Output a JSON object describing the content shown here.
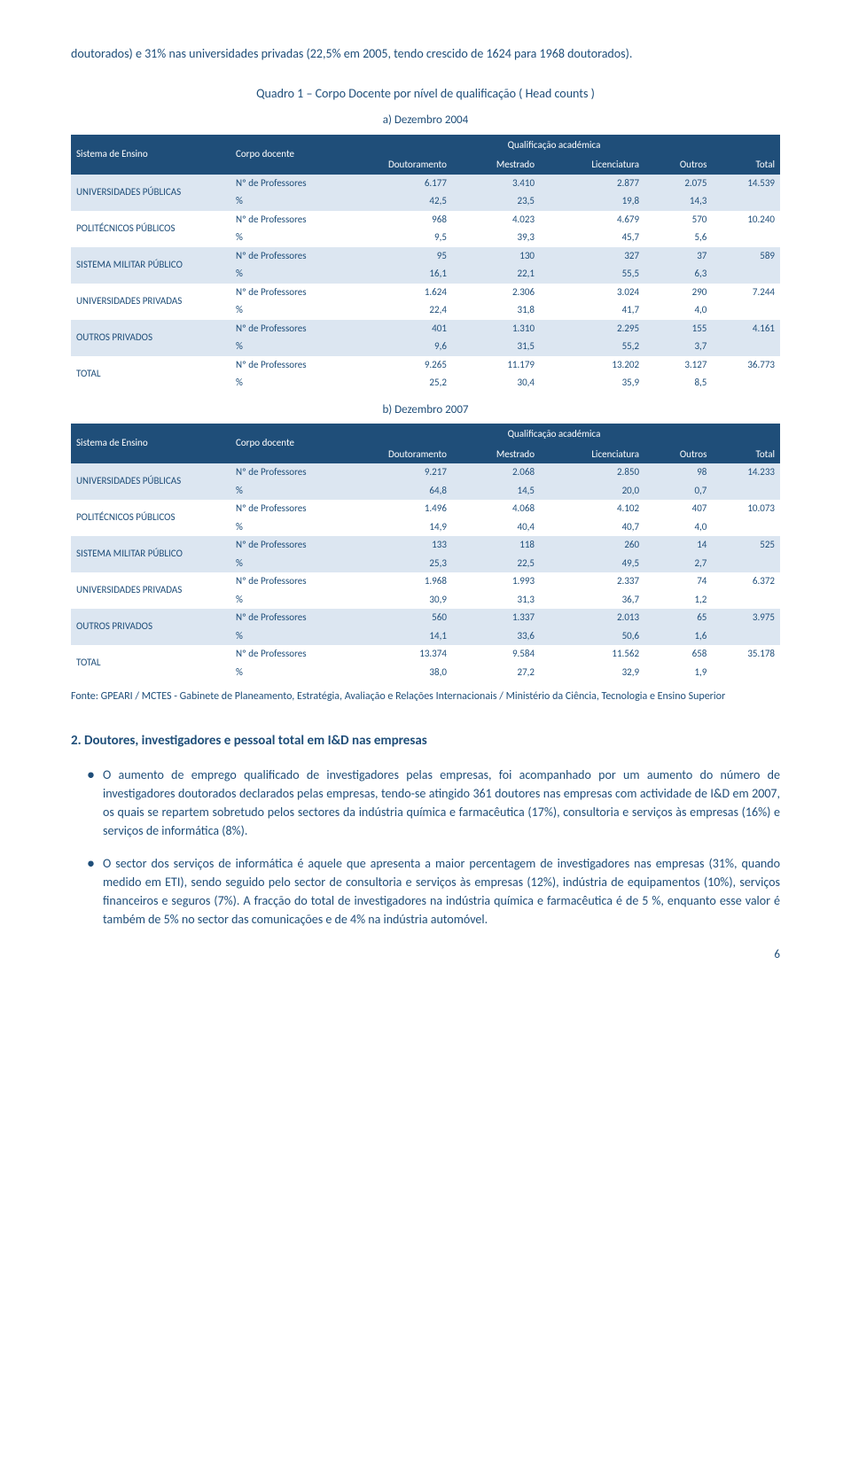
{
  "intro": "doutorados) e 31% nas universidades privadas (22,5% em 2005, tendo crescido de 1624 para 1968 doutorados).",
  "tableTitle": "Quadro 1 – Corpo Docente por nível de qualificação ( Head counts )",
  "colors": {
    "brand": "#1f4e79",
    "bandA": "#dce6f1",
    "bandB": "#ffffff"
  },
  "headers": {
    "sistema": "Sistema de Ensino",
    "corpo": "Corpo docente",
    "qual": "Qualificação académica",
    "cols": [
      "Doutoramento",
      "Mestrado",
      "Licenciatura",
      "Outros",
      "Total"
    ]
  },
  "measureLabels": {
    "n": "Nº de Professores",
    "p": "%"
  },
  "tableA": {
    "subtitle": "a) Dezembro 2004",
    "rows": [
      {
        "label": "UNIVERSIDADES PÚBLICAS",
        "n": [
          "6.177",
          "3.410",
          "2.877",
          "2.075",
          "14.539"
        ],
        "p": [
          "42,5",
          "23,5",
          "19,8",
          "14,3",
          ""
        ]
      },
      {
        "label": "POLITÉCNICOS PÚBLICOS",
        "n": [
          "968",
          "4.023",
          "4.679",
          "570",
          "10.240"
        ],
        "p": [
          "9,5",
          "39,3",
          "45,7",
          "5,6",
          ""
        ]
      },
      {
        "label": "SISTEMA MILITAR PÚBLICO",
        "n": [
          "95",
          "130",
          "327",
          "37",
          "589"
        ],
        "p": [
          "16,1",
          "22,1",
          "55,5",
          "6,3",
          ""
        ]
      },
      {
        "label": "UNIVERSIDADES PRIVADAS",
        "n": [
          "1.624",
          "2.306",
          "3.024",
          "290",
          "7.244"
        ],
        "p": [
          "22,4",
          "31,8",
          "41,7",
          "4,0",
          ""
        ]
      },
      {
        "label": "OUTROS PRIVADOS",
        "n": [
          "401",
          "1.310",
          "2.295",
          "155",
          "4.161"
        ],
        "p": [
          "9,6",
          "31,5",
          "55,2",
          "3,7",
          ""
        ]
      },
      {
        "label": "TOTAL",
        "n": [
          "9.265",
          "11.179",
          "13.202",
          "3.127",
          "36.773"
        ],
        "p": [
          "25,2",
          "30,4",
          "35,9",
          "8,5",
          ""
        ]
      }
    ]
  },
  "tableB": {
    "subtitle": "b) Dezembro 2007",
    "rows": [
      {
        "label": "UNIVERSIDADES PÚBLICAS",
        "n": [
          "9.217",
          "2.068",
          "2.850",
          "98",
          "14.233"
        ],
        "p": [
          "64,8",
          "14,5",
          "20,0",
          "0,7",
          ""
        ]
      },
      {
        "label": "POLITÉCNICOS PÚBLICOS",
        "n": [
          "1.496",
          "4.068",
          "4.102",
          "407",
          "10.073"
        ],
        "p": [
          "14,9",
          "40,4",
          "40,7",
          "4,0",
          ""
        ]
      },
      {
        "label": "SISTEMA MILITAR PÚBLICO",
        "n": [
          "133",
          "118",
          "260",
          "14",
          "525"
        ],
        "p": [
          "25,3",
          "22,5",
          "49,5",
          "2,7",
          ""
        ]
      },
      {
        "label": "UNIVERSIDADES PRIVADAS",
        "n": [
          "1.968",
          "1.993",
          "2.337",
          "74",
          "6.372"
        ],
        "p": [
          "30,9",
          "31,3",
          "36,7",
          "1,2",
          ""
        ]
      },
      {
        "label": "OUTROS PRIVADOS",
        "n": [
          "560",
          "1.337",
          "2.013",
          "65",
          "3.975"
        ],
        "p": [
          "14,1",
          "33,6",
          "50,6",
          "1,6",
          ""
        ]
      },
      {
        "label": "TOTAL",
        "n": [
          "13.374",
          "9.584",
          "11.562",
          "658",
          "35.178"
        ],
        "p": [
          "38,0",
          "27,2",
          "32,9",
          "1,9",
          ""
        ]
      }
    ]
  },
  "source": "Fonte: GPEARI / MCTES - Gabinete de Planeamento, Estratégia, Avaliação e Relações Internacionais / Ministério da Ciência, Tecnologia e Ensino Superior",
  "section": {
    "num": "2.",
    "title": "Doutores, investigadores e pessoal total em I&D nas empresas"
  },
  "bullets": [
    "O aumento de emprego qualificado de investigadores pelas empresas, foi acompanhado por um aumento do número de investigadores doutorados declarados pelas empresas, tendo-se atingido 361 doutores nas empresas com actividade de I&D em 2007, os quais se repartem sobretudo pelos sectores da indústria química e farmacêutica (17%), consultoria e serviços às empresas (16%) e serviços de informática (8%).",
    "O sector dos serviços de informática é aquele que apresenta a maior percentagem de investigadores nas empresas (31%, quando medido em ETI), sendo seguido pelo sector de consultoria e serviços às empresas (12%), indústria de equipamentos (10%), serviços financeiros e seguros (7%). A fracção do total de investigadores na indústria química e farmacêutica é de 5 %, enquanto esse valor é também de 5% no sector das comunicações e de 4% na indústria automóvel."
  ],
  "pagenum": "6"
}
